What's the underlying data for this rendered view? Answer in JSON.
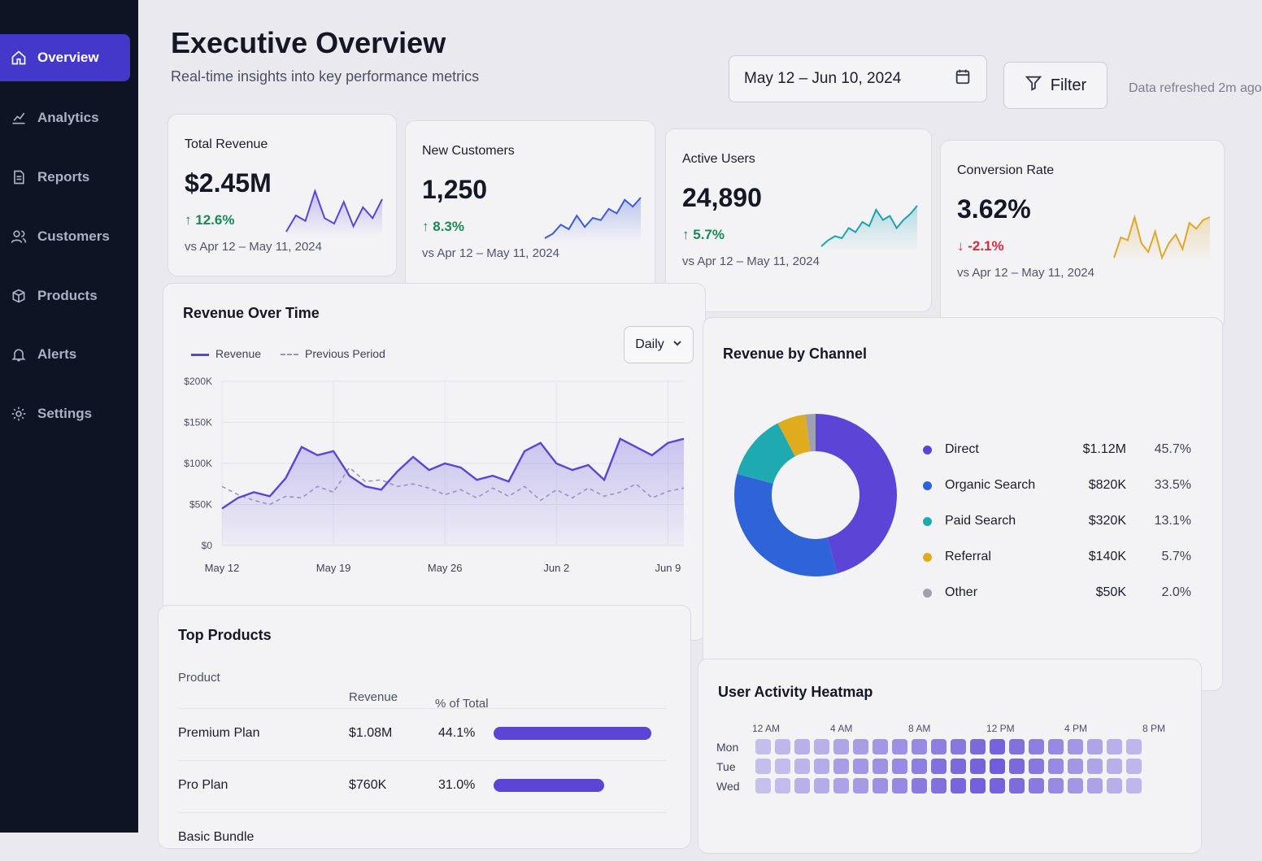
{
  "sidebar": {
    "items": [
      {
        "label": "Overview",
        "icon": "home-icon",
        "active": true
      },
      {
        "label": "Analytics",
        "icon": "analytics-icon",
        "active": false
      },
      {
        "label": "Reports",
        "icon": "document-icon",
        "active": false
      },
      {
        "label": "Customers",
        "icon": "users-icon",
        "active": false
      },
      {
        "label": "Products",
        "icon": "box-icon",
        "active": false
      },
      {
        "label": "Alerts",
        "icon": "bell-icon",
        "active": false
      },
      {
        "label": "Settings",
        "icon": "gear-icon",
        "active": false
      }
    ]
  },
  "header": {
    "title": "Executive Overview",
    "subtitle": "Real-time insights into key performance metrics",
    "date_range": "May 12 – Jun 10, 2024",
    "filter_label": "Filter",
    "refreshed": "Data refreshed 2m ago"
  },
  "kpis": [
    {
      "label": "Total Revenue",
      "value": "$2.45M",
      "delta": "12.6%",
      "direction": "up",
      "compare": "vs Apr 12 – May 11, 2024",
      "color": "#5b44d6",
      "spark": [
        40,
        52,
        48,
        70,
        50,
        46,
        62,
        44,
        58,
        50,
        64
      ]
    },
    {
      "label": "New Customers",
      "value": "1,250",
      "delta": "8.3%",
      "direction": "up",
      "compare": "vs Apr 12 – May 11, 2024",
      "color": "#3b5bdb",
      "spark": [
        30,
        34,
        42,
        38,
        50,
        40,
        48,
        46,
        56,
        52,
        64,
        58,
        66
      ]
    },
    {
      "label": "Active Users",
      "value": "24,890",
      "delta": "5.7%",
      "direction": "up",
      "compare": "vs Apr 12 – May 11, 2024",
      "color": "#1fa2b0",
      "spark": [
        20,
        26,
        30,
        28,
        38,
        34,
        44,
        40,
        56,
        46,
        50,
        38,
        46,
        52,
        60
      ]
    },
    {
      "label": "Conversion Rate",
      "value": "3.62%",
      "delta": "-2.1%",
      "direction": "down",
      "compare": "vs Apr 12 – May 11, 2024",
      "color": "#e0a82a",
      "spark": [
        30,
        44,
        42,
        58,
        40,
        34,
        48,
        30,
        40,
        46,
        36,
        54,
        50,
        56,
        58
      ]
    }
  ],
  "revenue_chart": {
    "title": "Revenue Over Time",
    "legend_current": "Revenue",
    "legend_previous": "Previous Period",
    "granularity": "Daily",
    "chart_data": {
      "type": "line",
      "x": [
        "May 12",
        "May 13",
        "May 14",
        "May 15",
        "May 16",
        "May 17",
        "May 18",
        "May 19",
        "May 20",
        "May 21",
        "May 22",
        "May 23",
        "May 24",
        "May 25",
        "May 26",
        "May 27",
        "May 28",
        "May 29",
        "May 30",
        "May 31",
        "Jun 1",
        "Jun 2",
        "Jun 3",
        "Jun 4",
        "Jun 5",
        "Jun 6",
        "Jun 7",
        "Jun 8",
        "Jun 9",
        "Jun 10"
      ],
      "x_ticks": [
        "May 12",
        "May 19",
        "May 26",
        "Jun 2",
        "Jun 9"
      ],
      "y_ticks": [
        "$0",
        "$50K",
        "$100K",
        "$150K",
        "$200K"
      ],
      "ylim": [
        0,
        200000
      ],
      "series": [
        {
          "name": "Revenue",
          "values": [
            45000,
            58000,
            65000,
            60000,
            82000,
            120000,
            110000,
            115000,
            85000,
            72000,
            68000,
            90000,
            108000,
            92000,
            100000,
            95000,
            80000,
            85000,
            78000,
            115000,
            125000,
            100000,
            92000,
            98000,
            80000,
            130000,
            120000,
            110000,
            125000,
            130000
          ]
        },
        {
          "name": "Previous Period",
          "values": [
            72000,
            62000,
            55000,
            50000,
            60000,
            58000,
            72000,
            65000,
            95000,
            78000,
            80000,
            72000,
            75000,
            70000,
            62000,
            68000,
            58000,
            70000,
            60000,
            72000,
            55000,
            68000,
            58000,
            70000,
            60000,
            65000,
            75000,
            58000,
            66000,
            70000
          ]
        }
      ]
    }
  },
  "channel_chart": {
    "title": "Revenue by Channel",
    "chart_data": {
      "type": "pie",
      "categories": [
        "Direct",
        "Organic Search",
        "Paid Search",
        "Referral",
        "Other"
      ],
      "values": [
        45.7,
        33.5,
        13.1,
        5.7,
        2.0
      ],
      "amounts": [
        "$1.12M",
        "$820K",
        "$320K",
        "$140K",
        "$50K"
      ],
      "percent_labels": [
        "45.7%",
        "33.5%",
        "13.1%",
        "5.7%",
        "2.0%"
      ],
      "colors": [
        "#5b44d6",
        "#2f63d8",
        "#1fa9b0",
        "#e0ac1e",
        "#9ea2b0"
      ]
    }
  },
  "top_products": {
    "title": "Top Products",
    "headers": {
      "product": "Product",
      "revenue": "Revenue",
      "pct": "% of Total"
    },
    "rows": [
      {
        "name": "Premium Plan",
        "revenue": "$1.08M",
        "pct": "44.1%",
        "share": 44.1
      },
      {
        "name": "Pro Plan",
        "revenue": "$760K",
        "pct": "31.0%",
        "share": 31.0
      },
      {
        "name": "Basic Bundle",
        "revenue": "",
        "pct": "",
        "share": 0
      }
    ]
  },
  "heatmap": {
    "title": "User Activity Heatmap",
    "hours": [
      "12 AM",
      "4 AM",
      "8 AM",
      "12 PM",
      "4 PM",
      "8 PM"
    ],
    "days": [
      "Mon",
      "Tue",
      "Wed"
    ],
    "intensity": [
      [
        0.2,
        0.25,
        0.3,
        0.3,
        0.4,
        0.45,
        0.5,
        0.55,
        0.6,
        0.7,
        0.75,
        0.85,
        0.9,
        0.8,
        0.7,
        0.6,
        0.5,
        0.4,
        0.3,
        0.25
      ],
      [
        0.2,
        0.22,
        0.28,
        0.35,
        0.45,
        0.5,
        0.55,
        0.6,
        0.7,
        0.8,
        0.85,
        0.9,
        0.95,
        0.85,
        0.75,
        0.6,
        0.5,
        0.4,
        0.3,
        0.25
      ],
      [
        0.18,
        0.22,
        0.3,
        0.35,
        0.42,
        0.48,
        0.55,
        0.62,
        0.72,
        0.8,
        0.88,
        0.92,
        0.9,
        0.82,
        0.72,
        0.6,
        0.5,
        0.42,
        0.32,
        0.26
      ]
    ]
  }
}
